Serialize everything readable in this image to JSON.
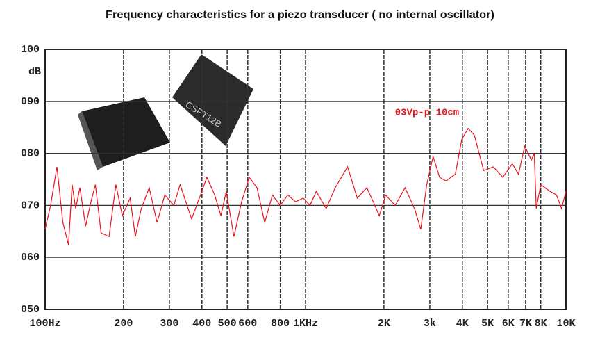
{
  "chart_data": {
    "type": "line",
    "title": "Frequency characteristics for a piezo transducer ( no internal oscillator)",
    "ylabel": "dB",
    "annotation": "03Vp-p 10cm",
    "log_x": true,
    "grid": true,
    "xlim": [
      100,
      10000
    ],
    "ylim": [
      50,
      100
    ],
    "xticks": [
      {
        "value": 100,
        "label": "100Hz"
      },
      200,
      300,
      400,
      500,
      600,
      800,
      {
        "value": 1000,
        "label": "1KHz"
      },
      {
        "value": 2000,
        "label": "2K"
      },
      {
        "value": 3000,
        "label": "3k"
      },
      {
        "value": 4000,
        "label": "4K"
      },
      {
        "value": 5000,
        "label": "5K"
      },
      {
        "value": 6000,
        "label": "6K"
      },
      {
        "value": 7000,
        "label": "7K"
      },
      {
        "value": 8000,
        "label": "8K"
      },
      {
        "value": 10000,
        "label": "10K"
      }
    ],
    "yticks": [
      {
        "value": 50,
        "label": "050"
      },
      {
        "value": 60,
        "label": "060"
      },
      {
        "value": 70,
        "label": "070"
      },
      {
        "value": 80,
        "label": "080"
      },
      {
        "value": 90,
        "label": "090"
      },
      100
    ],
    "series": [
      {
        "color": "#e8141c",
        "x": [
          100,
          105,
          111,
          117,
          123,
          127,
          131,
          136,
          143,
          150,
          156,
          164,
          176,
          187,
          198,
          212,
          222,
          234,
          251,
          269,
          288,
          312,
          330,
          365,
          391,
          418,
          448,
          473,
          496,
          531,
          568,
          608,
          651,
          697,
          746,
          799,
          855,
          916,
          980,
          1040,
          1100,
          1200,
          1300,
          1450,
          1580,
          1720,
          1820,
          1920,
          2030,
          2210,
          2410,
          2620,
          2770,
          2920,
          3090,
          3270,
          3460,
          3760,
          3980,
          4210,
          4450,
          4830,
          5260,
          5720,
          6220,
          6570,
          6950,
          7360,
          7560,
          7690,
          8000,
          8690,
          9200,
          9620,
          10000
        ],
        "values": [
          65.4,
          70,
          77.4,
          66.7,
          62.4,
          74,
          69.4,
          73.4,
          66,
          70.7,
          74,
          64.7,
          64,
          74,
          68,
          71.4,
          64,
          69.4,
          73.4,
          66.7,
          72,
          70,
          74,
          67.4,
          71.4,
          75.4,
          72,
          68,
          72.7,
          64,
          70.7,
          75.4,
          73.4,
          66.7,
          72,
          70,
          72,
          70.7,
          71.4,
          70,
          72.7,
          69.4,
          73.4,
          77.4,
          71.4,
          73.4,
          70.7,
          68,
          72,
          70,
          73.4,
          69.4,
          65.4,
          74,
          79.4,
          75.4,
          74.7,
          76,
          82.7,
          84.8,
          83.5,
          76.7,
          77.4,
          75.4,
          78,
          76,
          81.4,
          78.7,
          80,
          69.4,
          74,
          72.7,
          72,
          69.4,
          72.7
        ]
      }
    ]
  }
}
